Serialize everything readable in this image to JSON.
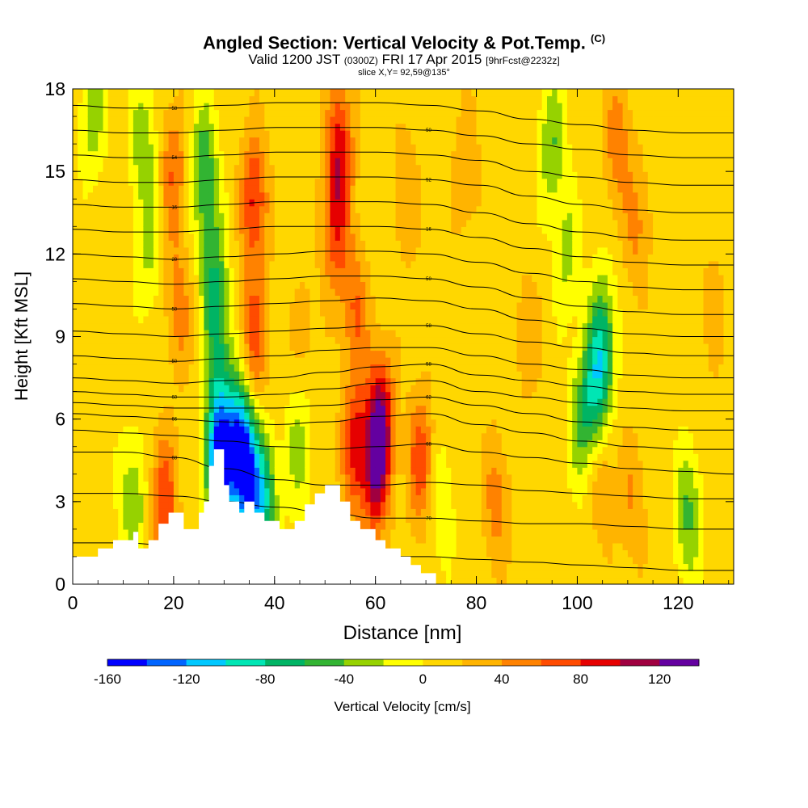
{
  "title": {
    "main": "Angled Section: Vertical Velocity & Pot.Temp.",
    "main_mark": "(C)",
    "line2_a": "Valid 1200 JST",
    "line2_b": "(0300Z)",
    "line2_c": "FRI 17 Apr 2015",
    "line2_d": "[9hrFcst@2232z]",
    "line3": "slice X,Y= 92,59@135°"
  },
  "chart_data": {
    "type": "heatmap",
    "title": "Angled Section: Vertical Velocity & Pot.Temp.",
    "xlabel": "Distance [nm]",
    "ylabel": "Height [Kft MSL]",
    "xlim": [
      0,
      131
    ],
    "ylim": [
      0,
      18
    ],
    "x_ticks": [
      "0",
      "20",
      "40",
      "60",
      "80",
      "100",
      "120"
    ],
    "y_ticks": [
      "0",
      "3",
      "6",
      "9",
      "12",
      "15",
      "18"
    ],
    "colorbar": {
      "label": "Vertical Velocity [cm/s]",
      "tick_labels": [
        "-160",
        "-120",
        "-80",
        "-40",
        "0",
        "40",
        "80",
        "120"
      ],
      "range": [
        -160,
        140
      ],
      "colors": [
        "#0000ff",
        "#0064ff",
        "#00c8ff",
        "#00e6b4",
        "#00b464",
        "#32b432",
        "#96d200",
        "#ffff00",
        "#ffd700",
        "#ffb400",
        "#ff8200",
        "#ff4b00",
        "#e60000",
        "#a00040",
        "#6400a0"
      ]
    },
    "velocity_field": {
      "background_cm_s": 10,
      "cells": [
        {
          "x": 4,
          "z": 17,
          "w": -30
        },
        {
          "x": 14,
          "z": 16,
          "w": -35
        },
        {
          "x": 15,
          "z": 12,
          "w": -20
        },
        {
          "x": 20,
          "z": 15,
          "w": 60
        },
        {
          "x": 21,
          "z": 10,
          "w": 50
        },
        {
          "x": 26,
          "z": 15,
          "w": -60
        },
        {
          "x": 28,
          "z": 11,
          "w": -55
        },
        {
          "x": 29,
          "z": 8,
          "w": -45
        },
        {
          "x": 36,
          "z": 14,
          "w": 85
        },
        {
          "x": 36,
          "z": 9,
          "w": 70
        },
        {
          "x": 33,
          "z": 5,
          "w": -130
        },
        {
          "x": 35,
          "z": 3.5,
          "w": -90
        },
        {
          "x": 38,
          "z": 3,
          "w": -70
        },
        {
          "x": 29,
          "z": 4.5,
          "w": -150
        },
        {
          "x": 53,
          "z": 16,
          "w": 85
        },
        {
          "x": 52,
          "z": 13,
          "w": 75
        },
        {
          "x": 56,
          "z": 10,
          "w": 60
        },
        {
          "x": 56,
          "z": 5,
          "w": 85
        },
        {
          "x": 60,
          "z": 4,
          "w": 90
        },
        {
          "x": 61,
          "z": 6,
          "w": 110
        },
        {
          "x": 69,
          "z": 4.5,
          "w": 75
        },
        {
          "x": 78,
          "z": 15,
          "w": 40
        },
        {
          "x": 66,
          "z": 14,
          "w": 40
        },
        {
          "x": 95,
          "z": 16,
          "w": -40
        },
        {
          "x": 98,
          "z": 12,
          "w": -25
        },
        {
          "x": 108,
          "z": 16,
          "w": 55
        },
        {
          "x": 112,
          "z": 13,
          "w": 45
        },
        {
          "x": 105,
          "z": 9,
          "w": -55
        },
        {
          "x": 104,
          "z": 7,
          "w": -60
        },
        {
          "x": 101,
          "z": 6,
          "w": -45
        },
        {
          "x": 105,
          "z": 4,
          "w": 45
        },
        {
          "x": 111,
          "z": 3,
          "w": 40
        },
        {
          "x": 122,
          "z": 2.5,
          "w": -45
        },
        {
          "x": 18,
          "z": 3,
          "w": 80
        },
        {
          "x": 12,
          "z": 3,
          "w": -40
        },
        {
          "x": 45,
          "z": 5,
          "w": -30
        },
        {
          "x": 73,
          "z": 3,
          "w": -20
        },
        {
          "x": 84,
          "z": 3,
          "w": 50
        },
        {
          "x": 46,
          "z": 9,
          "w": 30
        },
        {
          "x": 90,
          "z": 9,
          "w": 35
        },
        {
          "x": 127,
          "z": 10,
          "w": 30
        }
      ]
    },
    "terrain_height_kft": [
      [
        0,
        1
      ],
      [
        5,
        1
      ],
      [
        5,
        1.3
      ],
      [
        8,
        1.3
      ],
      [
        8,
        1.6
      ],
      [
        12,
        1.6
      ],
      [
        12,
        1.9
      ],
      [
        13,
        1.9
      ],
      [
        13,
        1.3
      ],
      [
        15,
        1.3
      ],
      [
        15,
        1.6
      ],
      [
        17,
        1.6
      ],
      [
        17,
        2.2
      ],
      [
        19,
        2.2
      ],
      [
        19,
        2.6
      ],
      [
        22,
        2.6
      ],
      [
        22,
        2.0
      ],
      [
        25,
        2.0
      ],
      [
        25,
        2.6
      ],
      [
        26,
        2.6
      ],
      [
        26,
        3.0
      ],
      [
        27,
        3.0
      ],
      [
        27,
        4.3
      ],
      [
        28,
        4.3
      ],
      [
        28,
        4.9
      ],
      [
        30,
        4.9
      ],
      [
        30,
        3.6
      ],
      [
        31,
        3.6
      ],
      [
        31,
        3.0
      ],
      [
        33,
        3.0
      ],
      [
        33,
        2.6
      ],
      [
        34,
        2.6
      ],
      [
        34,
        3.0
      ],
      [
        36,
        3.0
      ],
      [
        36,
        2.6
      ],
      [
        38,
        2.6
      ],
      [
        38,
        2.3
      ],
      [
        41,
        2.3
      ],
      [
        41,
        2.0
      ],
      [
        44,
        2.0
      ],
      [
        44,
        2.3
      ],
      [
        46,
        2.3
      ],
      [
        46,
        2.9
      ],
      [
        48,
        2.9
      ],
      [
        48,
        3.3
      ],
      [
        50,
        3.3
      ],
      [
        50,
        3.6
      ],
      [
        53,
        3.6
      ],
      [
        53,
        3.0
      ],
      [
        55,
        3.0
      ],
      [
        55,
        2.3
      ],
      [
        57,
        2.3
      ],
      [
        57,
        2.0
      ],
      [
        60,
        2.0
      ],
      [
        60,
        1.6
      ],
      [
        62,
        1.6
      ],
      [
        62,
        1.3
      ],
      [
        65,
        1.3
      ],
      [
        65,
        1.0
      ],
      [
        67,
        1.0
      ],
      [
        67,
        0.7
      ],
      [
        69,
        0.7
      ],
      [
        69,
        0.4
      ],
      [
        72,
        0.4
      ],
      [
        72,
        0
      ],
      [
        131,
        0
      ]
    ],
    "theta_contours": {
      "label_values": [
        "72",
        "70",
        "68",
        "68",
        "66",
        "62",
        "60",
        "58",
        "50",
        "58",
        "50",
        "50",
        "20",
        "16",
        "16",
        "52",
        "54",
        "50",
        "58",
        "56",
        "54",
        "53",
        "52",
        "60",
        "54"
      ],
      "levels": [
        {
          "z": [
            1.5,
            1.5,
            1.4,
            1.3,
            1.2,
            1.1,
            1.0,
            1.0,
            0.9,
            0.8,
            0.7,
            0.6,
            0.5,
            0.5
          ]
        },
        {
          "z": [
            3.3,
            3.3,
            3.2,
            3.0,
            2.8,
            2.6,
            2.4,
            2.4,
            2.3,
            2.2,
            2.2,
            2.1,
            2.0,
            2.0
          ]
        },
        {
          "z": [
            4.8,
            4.8,
            4.6,
            4.2,
            3.8,
            3.6,
            3.6,
            3.7,
            3.6,
            3.4,
            3.3,
            3.2,
            3.1,
            3.1
          ]
        },
        {
          "z": [
            5.6,
            5.5,
            5.4,
            5.2,
            5.0,
            4.9,
            5.0,
            5.1,
            4.8,
            4.6,
            4.4,
            4.2,
            4.1,
            4.0
          ]
        },
        {
          "z": [
            6.2,
            6.1,
            6.0,
            5.9,
            5.8,
            5.9,
            6.1,
            6.2,
            5.8,
            5.5,
            5.2,
            5.0,
            4.9,
            4.9
          ]
        },
        {
          "z": [
            6.6,
            6.5,
            6.4,
            6.4,
            6.4,
            6.5,
            6.7,
            6.8,
            6.5,
            6.2,
            5.9,
            5.7,
            5.6,
            5.6
          ]
        },
        {
          "z": [
            7.0,
            6.9,
            6.8,
            6.8,
            6.9,
            7.1,
            7.3,
            7.4,
            7.0,
            6.8,
            6.6,
            6.4,
            6.3,
            6.3
          ]
        },
        {
          "z": [
            7.5,
            7.4,
            7.3,
            7.4,
            7.5,
            7.7,
            7.9,
            8.0,
            7.6,
            7.4,
            7.2,
            7.0,
            6.9,
            6.9
          ]
        },
        {
          "z": [
            8.3,
            8.2,
            8.1,
            8.2,
            8.3,
            8.5,
            8.6,
            8.6,
            8.3,
            8.0,
            7.8,
            7.6,
            7.5,
            7.5
          ]
        },
        {
          "z": [
            9.2,
            9.1,
            9.0,
            9.1,
            9.2,
            9.3,
            9.4,
            9.4,
            9.1,
            8.8,
            8.6,
            8.4,
            8.3,
            8.3
          ]
        },
        {
          "z": [
            10.2,
            10.1,
            10.0,
            10.1,
            10.2,
            10.3,
            10.4,
            10.3,
            10.0,
            9.6,
            9.3,
            9.1,
            9.0,
            9.0
          ]
        },
        {
          "z": [
            11.1,
            11.0,
            10.9,
            11.0,
            11.1,
            11.2,
            11.2,
            11.1,
            10.8,
            10.4,
            10.1,
            9.9,
            9.8,
            9.8
          ]
        },
        {
          "z": [
            12.0,
            11.9,
            11.8,
            11.9,
            12.0,
            12.1,
            12.1,
            12.0,
            11.7,
            11.3,
            11.0,
            10.8,
            10.7,
            10.7
          ]
        },
        {
          "z": [
            12.9,
            12.8,
            12.8,
            12.9,
            13.0,
            13.0,
            13.0,
            12.9,
            12.6,
            12.2,
            11.9,
            11.7,
            11.6,
            11.6
          ]
        },
        {
          "z": [
            13.8,
            13.7,
            13.7,
            13.8,
            13.9,
            13.9,
            13.9,
            13.8,
            13.5,
            13.1,
            12.8,
            12.6,
            12.5,
            12.5
          ]
        },
        {
          "z": [
            14.7,
            14.6,
            14.6,
            14.7,
            14.8,
            14.8,
            14.8,
            14.7,
            14.5,
            14.1,
            13.8,
            13.6,
            13.5,
            13.5
          ]
        },
        {
          "z": [
            15.6,
            15.5,
            15.5,
            15.6,
            15.7,
            15.7,
            15.7,
            15.6,
            15.4,
            15.0,
            14.8,
            14.6,
            14.5,
            14.5
          ]
        },
        {
          "z": [
            16.5,
            16.4,
            16.4,
            16.5,
            16.6,
            16.6,
            16.6,
            16.5,
            16.3,
            16.0,
            15.8,
            15.6,
            15.5,
            15.5
          ]
        },
        {
          "z": [
            17.4,
            17.3,
            17.3,
            17.4,
            17.5,
            17.5,
            17.5,
            17.4,
            17.2,
            16.9,
            16.7,
            16.5,
            16.4,
            16.4
          ]
        }
      ]
    }
  }
}
